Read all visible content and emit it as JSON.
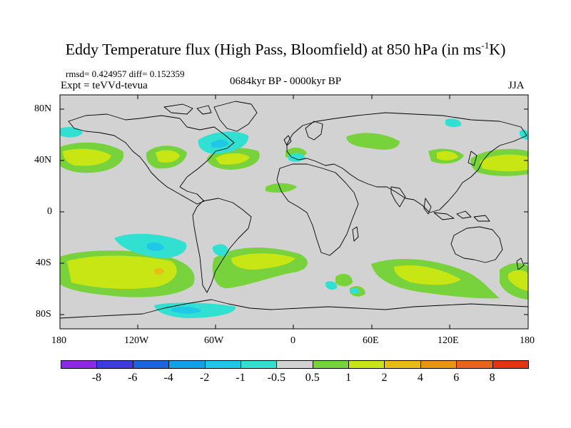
{
  "title": {
    "main": "Eddy Temperature flux (High Pass, Bloomfield) at 850 hPa (in ms",
    "sup": "-1",
    "end": "K)"
  },
  "subtitle": {
    "stats": "rmsd= 0.424957 diff= 0.152359",
    "experiment": "Expt = teVVd-tevua",
    "period": "0684kyr BP - 0000kyr BP",
    "season": "JJA"
  },
  "map": {
    "y_ticks": [
      "80N",
      "40N",
      "0",
      "40S",
      "80S"
    ],
    "x_ticks": [
      "180",
      "120W",
      "60W",
      "0",
      "60E",
      "120E",
      "180"
    ]
  },
  "colorbar": {
    "labels": [
      "-8",
      "-6",
      "-4",
      "-2",
      "-1",
      "-0.5",
      "0.5",
      "1",
      "2",
      "4",
      "6",
      "8"
    ],
    "colors": [
      "#8a2be2",
      "#3c3cdc",
      "#1e64dc",
      "#14a0e6",
      "#1ec8e6",
      "#32e0d2",
      "#d2d2d2",
      "#78d23c",
      "#c8e614",
      "#e6be14",
      "#e69614",
      "#e6641e",
      "#e63214"
    ]
  },
  "colors": {
    "neutral": "#d2d2d2",
    "green": "#78d23c",
    "yellow": "#c8e614",
    "orange": "#e6be14",
    "cyan": "#32e0d2",
    "blue": "#1ec8e6",
    "deepblue": "#14a0e6"
  }
}
